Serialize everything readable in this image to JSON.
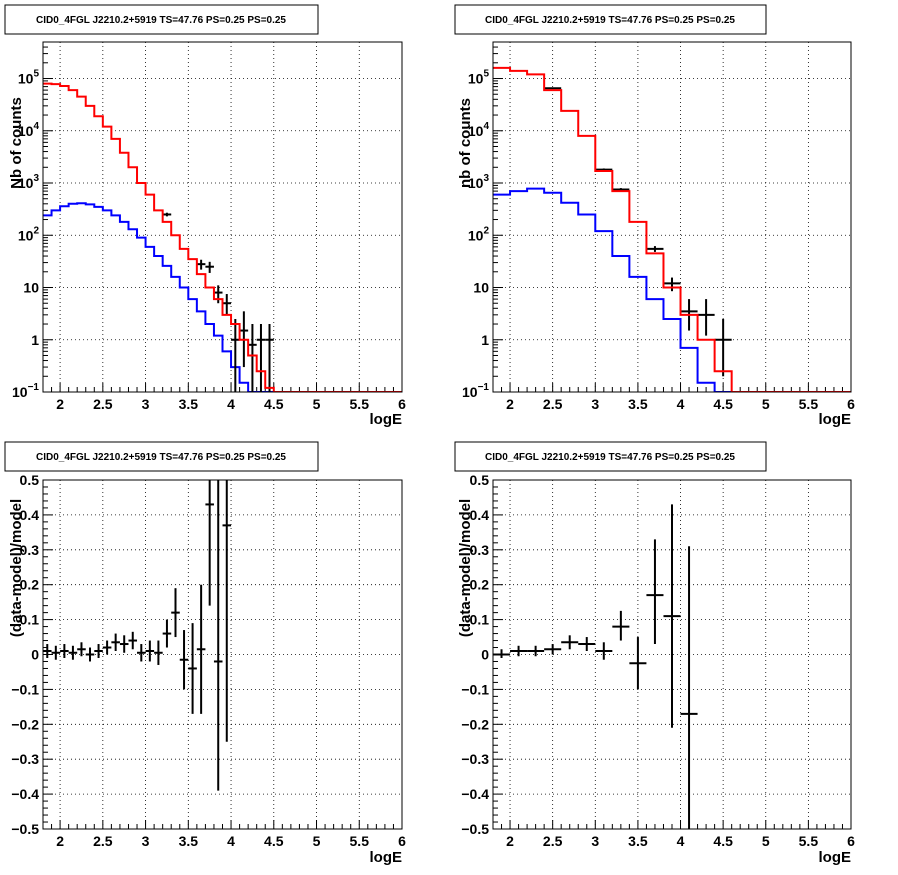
{
  "colors": {
    "model": "#ff0000",
    "component": "#0000ff",
    "data": "#000000"
  },
  "chart_data": [
    {
      "type": "histogram",
      "title": "CID0_4FGL J2210.2+5919 TS=47.76 PS=0.25 PS=0.25",
      "xlabel": "logE",
      "ylabel": "Nb of counts",
      "xlim": [
        1.8,
        6.0
      ],
      "ylim": [
        0.1,
        500000
      ],
      "yscale": "log",
      "grid": true,
      "x_ticks": [
        "2",
        "2.5",
        "3",
        "3.5",
        "4",
        "4.5",
        "5",
        "5.5",
        "6"
      ],
      "y_ticks": [
        "10^-1",
        "1",
        "10",
        "10^2",
        "10^3",
        "10^4",
        "10^5"
      ],
      "bin_edges": [
        1.8,
        1.9,
        2.0,
        2.1,
        2.2,
        2.3,
        2.4,
        2.5,
        2.6,
        2.7,
        2.8,
        2.9,
        3.0,
        3.1,
        3.2,
        3.3,
        3.4,
        3.5,
        3.6,
        3.7,
        3.8,
        3.9,
        4.0,
        4.1,
        4.2,
        4.3,
        4.4,
        4.5,
        4.6,
        4.7,
        4.8,
        4.9,
        5.0,
        5.1,
        5.2,
        5.3,
        5.4,
        5.5,
        5.6,
        5.7,
        5.8,
        5.9,
        6.0
      ],
      "series": [
        {
          "name": "model_total",
          "values": [
            80000,
            78000,
            72000,
            60000,
            45000,
            30000,
            19000,
            12000,
            7000,
            3800,
            2000,
            1000,
            600,
            300,
            180,
            100,
            55,
            35,
            18,
            10,
            6,
            3,
            2,
            1,
            0.5,
            0.25,
            0.12,
            0.1,
            0.1,
            0.1,
            0.1,
            0.1,
            0.1,
            0.1,
            0.1,
            0.1,
            0.1,
            0.1,
            0.1,
            0.1,
            0.1,
            0.1
          ]
        },
        {
          "name": "model_component",
          "values": [
            240,
            300,
            360,
            400,
            410,
            390,
            350,
            300,
            240,
            180,
            130,
            90,
            60,
            40,
            26,
            16,
            10,
            6,
            3.5,
            2,
            1.2,
            0.6,
            0.3,
            0.15,
            0.1,
            0.1,
            0.1,
            0.1,
            0.1,
            0.1,
            0.1,
            0.1,
            0.1,
            0.1,
            0.1,
            0.1,
            0.1,
            0.1,
            0.1,
            0.1,
            0.1,
            0.1
          ]
        },
        {
          "name": "data",
          "points": [
            {
              "x": 3.25,
              "y": 250,
              "ylo": 230,
              "yhi": 270
            },
            {
              "x": 3.65,
              "y": 28,
              "ylo": 22,
              "yhi": 34
            },
            {
              "x": 3.75,
              "y": 25,
              "ylo": 19,
              "yhi": 31
            },
            {
              "x": 3.85,
              "y": 8,
              "ylo": 5,
              "yhi": 11
            },
            {
              "x": 3.95,
              "y": 5,
              "ylo": 3,
              "yhi": 7.5
            },
            {
              "x": 4.05,
              "y": 1,
              "ylo": 0.1,
              "yhi": 2.5
            },
            {
              "x": 4.15,
              "y": 1.5,
              "ylo": 0.3,
              "yhi": 3.5
            },
            {
              "x": 4.25,
              "y": 0.8,
              "ylo": 0.1,
              "yhi": 2
            },
            {
              "x": 4.35,
              "y": 1,
              "ylo": 0.1,
              "yhi": 2
            },
            {
              "x": 4.45,
              "y": 1,
              "ylo": 0.1,
              "yhi": 2
            }
          ]
        }
      ]
    },
    {
      "type": "histogram",
      "title": "CID0_4FGL J2210.2+5919 TS=47.76 PS=0.25 PS=0.25",
      "xlabel": "logE",
      "ylabel": "nb of counts",
      "xlim": [
        1.8,
        6.0
      ],
      "ylim": [
        0.1,
        500000
      ],
      "yscale": "log",
      "grid": true,
      "x_ticks": [
        "2",
        "2.5",
        "3",
        "3.5",
        "4",
        "4.5",
        "5",
        "5.5",
        "6"
      ],
      "y_ticks": [
        "10^-1",
        "1",
        "10",
        "10^2",
        "10^3",
        "10^4",
        "10^5"
      ],
      "bin_edges": [
        1.8,
        2.0,
        2.2,
        2.4,
        2.6,
        2.8,
        3.0,
        3.2,
        3.4,
        3.6,
        3.8,
        4.0,
        4.2,
        4.4,
        4.6,
        4.8,
        5.0,
        5.2,
        5.4,
        5.6,
        5.8,
        6.0
      ],
      "series": [
        {
          "name": "model_total",
          "values": [
            160000,
            140000,
            120000,
            60000,
            24000,
            8000,
            1700,
            700,
            180,
            45,
            10,
            3,
            1,
            0.25,
            0.1,
            0.1,
            0.1,
            0.1,
            0.1,
            0.1,
            0.1
          ]
        },
        {
          "name": "model_component",
          "values": [
            600,
            700,
            780,
            650,
            420,
            250,
            120,
            40,
            16,
            6,
            2.5,
            0.7,
            0.15,
            0.1,
            0.1,
            0.1,
            0.1,
            0.1,
            0.1,
            0.1,
            0.1
          ]
        },
        {
          "name": "data",
          "points": [
            {
              "x": 2.5,
              "y": 65000,
              "ylo": 63000,
              "yhi": 67000
            },
            {
              "x": 3.1,
              "y": 1800,
              "ylo": 1700,
              "yhi": 1900
            },
            {
              "x": 3.3,
              "y": 750,
              "ylo": 700,
              "yhi": 800
            },
            {
              "x": 3.7,
              "y": 55,
              "ylo": 48,
              "yhi": 62
            },
            {
              "x": 3.9,
              "y": 12,
              "ylo": 8.5,
              "yhi": 15.5
            },
            {
              "x": 4.1,
              "y": 3.5,
              "ylo": 1.5,
              "yhi": 6
            },
            {
              "x": 4.3,
              "y": 3,
              "ylo": 1.2,
              "yhi": 6
            },
            {
              "x": 4.5,
              "y": 1,
              "ylo": 0.2,
              "yhi": 2.5
            }
          ]
        }
      ]
    },
    {
      "type": "scatter",
      "title": "CID0_4FGL J2210.2+5919 TS=47.76 PS=0.25 PS=0.25",
      "xlabel": "logE",
      "ylabel": "(data-model)/model",
      "xlim": [
        1.8,
        6.0
      ],
      "ylim": [
        -0.5,
        0.5
      ],
      "grid": true,
      "x_ticks": [
        "2",
        "2.5",
        "3",
        "3.5",
        "4",
        "4.5",
        "5",
        "5.5",
        "6"
      ],
      "y_ticks": [
        "−0.5",
        "−0.4",
        "−0.3",
        "−0.2",
        "−0.1",
        "0",
        "0.1",
        "0.2",
        "0.3",
        "0.4",
        "0.5"
      ],
      "points": [
        {
          "x": 1.85,
          "y": 0.01,
          "ylo": -0.01,
          "yhi": 0.03
        },
        {
          "x": 1.95,
          "y": 0.005,
          "ylo": -0.015,
          "yhi": 0.025
        },
        {
          "x": 2.05,
          "y": 0.01,
          "ylo": -0.01,
          "yhi": 0.03
        },
        {
          "x": 2.15,
          "y": 0.005,
          "ylo": -0.015,
          "yhi": 0.025
        },
        {
          "x": 2.25,
          "y": 0.015,
          "ylo": -0.005,
          "yhi": 0.035
        },
        {
          "x": 2.35,
          "y": 0.0,
          "ylo": -0.02,
          "yhi": 0.02
        },
        {
          "x": 2.45,
          "y": 0.01,
          "ylo": -0.01,
          "yhi": 0.03
        },
        {
          "x": 2.55,
          "y": 0.02,
          "ylo": 0.0,
          "yhi": 0.04
        },
        {
          "x": 2.65,
          "y": 0.035,
          "ylo": 0.01,
          "yhi": 0.06
        },
        {
          "x": 2.75,
          "y": 0.03,
          "ylo": 0.005,
          "yhi": 0.055
        },
        {
          "x": 2.85,
          "y": 0.04,
          "ylo": 0.015,
          "yhi": 0.065
        },
        {
          "x": 2.95,
          "y": 0.005,
          "ylo": -0.02,
          "yhi": 0.03
        },
        {
          "x": 3.05,
          "y": 0.01,
          "ylo": -0.02,
          "yhi": 0.04
        },
        {
          "x": 3.15,
          "y": 0.005,
          "ylo": -0.03,
          "yhi": 0.04
        },
        {
          "x": 3.25,
          "y": 0.06,
          "ylo": 0.02,
          "yhi": 0.1
        },
        {
          "x": 3.35,
          "y": 0.12,
          "ylo": 0.05,
          "yhi": 0.19
        },
        {
          "x": 3.45,
          "y": -0.015,
          "ylo": -0.1,
          "yhi": 0.07
        },
        {
          "x": 3.55,
          "y": -0.04,
          "ylo": -0.17,
          "yhi": 0.09
        },
        {
          "x": 3.65,
          "y": 0.015,
          "ylo": -0.17,
          "yhi": 0.2
        },
        {
          "x": 3.75,
          "y": 0.43,
          "ylo": 0.14,
          "yhi": 0.5
        },
        {
          "x": 3.85,
          "y": -0.02,
          "ylo": -0.39,
          "yhi": 0.5
        },
        {
          "x": 3.95,
          "y": 0.37,
          "ylo": -0.25,
          "yhi": 0.5
        }
      ]
    },
    {
      "type": "scatter",
      "title": "CID0_4FGL J2210.2+5919 TS=47.76 PS=0.25 PS=0.25",
      "xlabel": "logE",
      "ylabel": "(data-model)/model",
      "xlim": [
        1.8,
        6.0
      ],
      "ylim": [
        -0.5,
        0.5
      ],
      "grid": true,
      "x_ticks": [
        "2",
        "2.5",
        "3",
        "3.5",
        "4",
        "4.5",
        "5",
        "5.5",
        "6"
      ],
      "y_ticks": [
        "−0.5",
        "−0.4",
        "−0.3",
        "−0.2",
        "−0.1",
        "0",
        "0.1",
        "0.2",
        "0.3",
        "0.4",
        "0.5"
      ],
      "points": [
        {
          "x": 1.9,
          "y": 0.0,
          "ylo": -0.01,
          "yhi": 0.015
        },
        {
          "x": 2.1,
          "y": 0.01,
          "ylo": -0.005,
          "yhi": 0.025
        },
        {
          "x": 2.3,
          "y": 0.01,
          "ylo": -0.005,
          "yhi": 0.025
        },
        {
          "x": 2.5,
          "y": 0.015,
          "ylo": 0.0,
          "yhi": 0.03
        },
        {
          "x": 2.7,
          "y": 0.035,
          "ylo": 0.015,
          "yhi": 0.055
        },
        {
          "x": 2.9,
          "y": 0.03,
          "ylo": 0.01,
          "yhi": 0.05
        },
        {
          "x": 3.1,
          "y": 0.01,
          "ylo": -0.015,
          "yhi": 0.035
        },
        {
          "x": 3.3,
          "y": 0.08,
          "ylo": 0.04,
          "yhi": 0.125
        },
        {
          "x": 3.5,
          "y": -0.025,
          "ylo": -0.1,
          "yhi": 0.05
        },
        {
          "x": 3.7,
          "y": 0.17,
          "ylo": 0.03,
          "yhi": 0.33
        },
        {
          "x": 3.9,
          "y": 0.11,
          "ylo": -0.21,
          "yhi": 0.43
        },
        {
          "x": 4.1,
          "y": -0.17,
          "ylo": -0.5,
          "yhi": 0.31
        }
      ]
    }
  ]
}
